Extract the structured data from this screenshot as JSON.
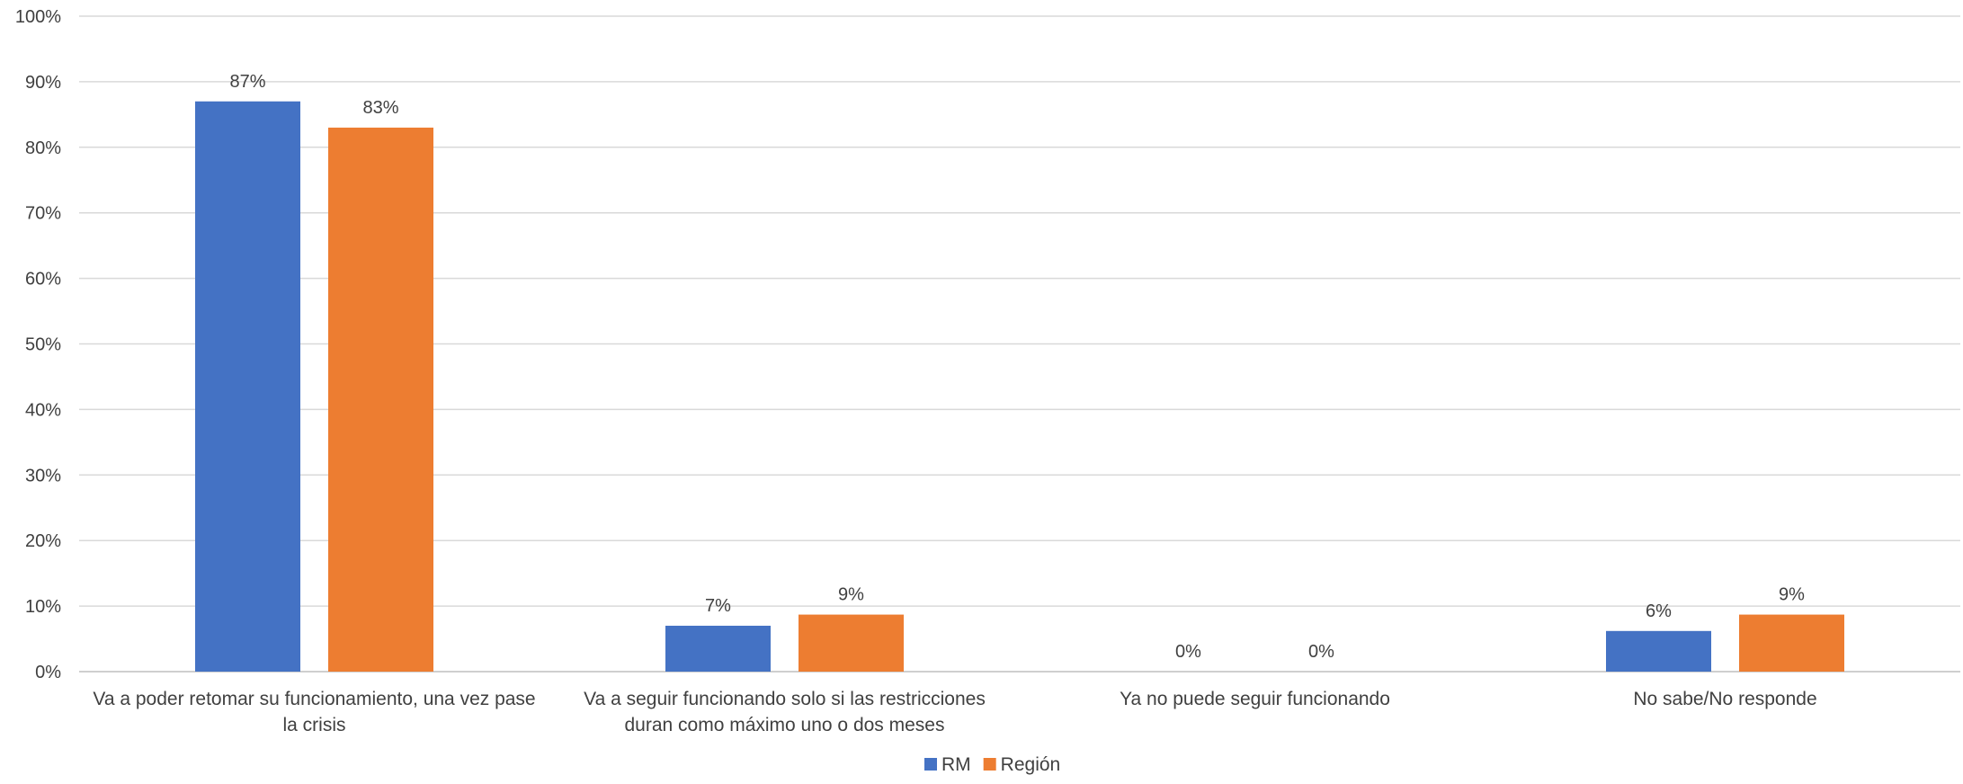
{
  "chart_data": {
    "type": "bar",
    "categories": [
      [
        "Va a poder retomar su funcionamiento, una vez pase",
        "la crisis"
      ],
      [
        "Va a seguir funcionando solo si las restricciones",
        "duran como máximo uno o dos meses"
      ],
      [
        "Ya no puede seguir funcionando"
      ],
      [
        "No sabe/No responde"
      ]
    ],
    "series": [
      {
        "name": "RM",
        "values": [
          0.87,
          0.07,
          0.0,
          0.062
        ],
        "labels": [
          "87%",
          "7%",
          "0%",
          "6%"
        ],
        "color": "#4472C4"
      },
      {
        "name": "Región",
        "values": [
          0.83,
          0.087,
          0.0,
          0.087
        ],
        "labels": [
          "83%",
          "9%",
          "0%",
          "9%"
        ],
        "color": "#ED7D31"
      }
    ],
    "ylim": [
      0,
      1
    ],
    "yticks": [
      "0%",
      "10%",
      "20%",
      "30%",
      "40%",
      "50%",
      "60%",
      "70%",
      "80%",
      "90%",
      "100%"
    ],
    "grid": true,
    "legend_position": "bottom",
    "title": "",
    "xlabel": "",
    "ylabel": ""
  }
}
